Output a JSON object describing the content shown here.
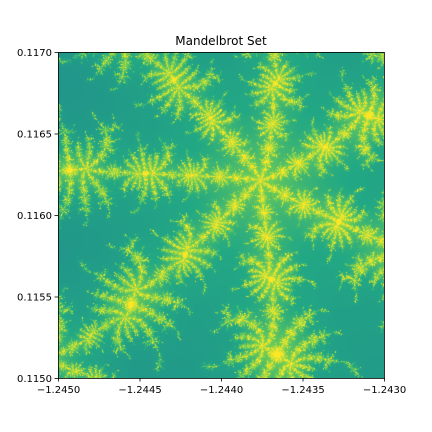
{
  "chart_data": {
    "type": "heatmap",
    "title": "Mandelbrot Set",
    "xlabel": "",
    "ylabel": "",
    "xlim": [
      -1.245,
      -1.243
    ],
    "ylim": [
      0.115,
      0.117
    ],
    "x_ticks": [
      "−1.2450",
      "−1.2445",
      "−1.2440",
      "−1.2435",
      "−1.2430"
    ],
    "y_ticks": [
      "0.1150",
      "0.1155",
      "0.1160",
      "0.1165",
      "0.1170"
    ],
    "colormap": "viridis",
    "colorbar": false,
    "grid": false
  }
}
